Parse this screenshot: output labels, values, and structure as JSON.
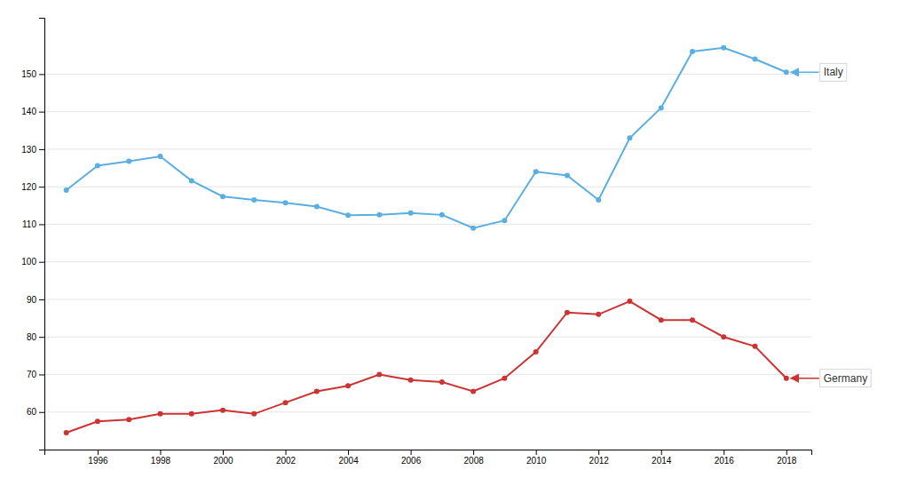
{
  "chart_data": {
    "type": "line",
    "x": [
      1995,
      1996,
      1997,
      1998,
      1999,
      2000,
      2001,
      2002,
      2003,
      2004,
      2005,
      2006,
      2007,
      2008,
      2009,
      2010,
      2011,
      2012,
      2013,
      2014,
      2015,
      2016,
      2017,
      2018
    ],
    "series": [
      {
        "color": "#5aafe0",
        "values": [
          119.1,
          125.6,
          126.8,
          128.1,
          121.6,
          117.4,
          116.5,
          115.7,
          114.7,
          112.4,
          112.5,
          113.0,
          112.5,
          109.0,
          111.0,
          124.0,
          123.0,
          116.5,
          133.0,
          141.0,
          156.0,
          157.0,
          154.0,
          150.5
        ]
      },
      {
        "color": "#cc3333",
        "values": [
          54.5,
          57.5,
          58.0,
          59.5,
          59.5,
          60.5,
          59.5,
          62.5,
          65.5,
          67.0,
          70.0,
          68.5,
          68.0,
          65.5,
          69.0,
          76.0,
          86.5,
          86.0,
          89.5,
          84.5,
          84.5,
          80.0,
          77.5,
          69.0
        ]
      }
    ],
    "marker": "circle",
    "xlim": [
      1994.3,
      2018.8
    ],
    "xticks": [
      1996,
      1998,
      2000,
      2002,
      2004,
      2006,
      2008,
      2010,
      2012,
      2014,
      2016,
      2018
    ],
    "ylim": [
      50,
      165
    ],
    "yticks": [
      60,
      70,
      80,
      90,
      100,
      110,
      120,
      130,
      140,
      150
    ],
    "grid": true,
    "annotations": [
      {
        "text": "Italy",
        "x": 2018,
        "y": 150.5
      },
      {
        "text": "Germany",
        "x": 2018,
        "y": 69.0
      }
    ]
  }
}
